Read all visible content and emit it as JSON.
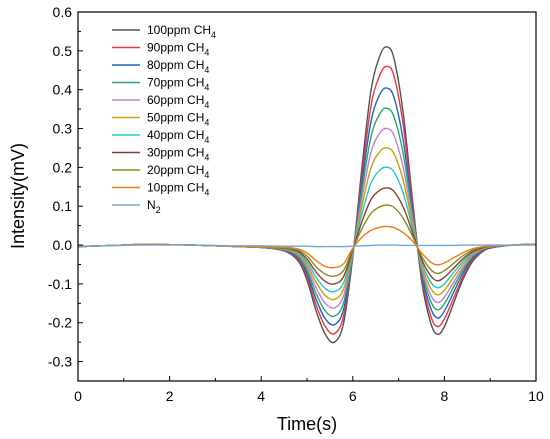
{
  "chart_data": {
    "type": "line",
    "title": "",
    "xlabel": "Time(s)",
    "ylabel": "Intensity(mV)",
    "xlim": [
      0,
      10
    ],
    "ylim": [
      -0.35,
      0.6
    ],
    "xticks": [
      "0",
      "2",
      "4",
      "6",
      "8",
      "10"
    ],
    "yticks": [
      "-0.3",
      "-0.2",
      "-0.1",
      "0.0",
      "0.1",
      "0.2",
      "0.3",
      "0.4",
      "0.5",
      "0.6"
    ],
    "grid": false,
    "legend_position": "top-left",
    "x": [
      0,
      0.5,
      1,
      1.5,
      2,
      2.5,
      3,
      3.5,
      4,
      4.5,
      4.8,
      5.0,
      5.2,
      5.4,
      5.6,
      5.8,
      6.0,
      6.2,
      6.4,
      6.6,
      6.75,
      6.9,
      7.1,
      7.3,
      7.5,
      7.7,
      7.85,
      8.0,
      8.2,
      8.4,
      8.6,
      8.8,
      9.0,
      9.5,
      10
    ],
    "series": [
      {
        "name": "100ppm CH",
        "sub": "4",
        "color": "#505050",
        "values": [
          -0.004,
          -0.002,
          0.0,
          0.002,
          0.001,
          0.0,
          -0.002,
          -0.004,
          -0.006,
          -0.015,
          -0.04,
          -0.09,
          -0.17,
          -0.23,
          -0.25,
          -0.2,
          -0.03,
          0.2,
          0.4,
          0.49,
          0.51,
          0.48,
          0.34,
          0.12,
          -0.09,
          -0.2,
          -0.23,
          -0.21,
          -0.15,
          -0.09,
          -0.045,
          -0.02,
          -0.008,
          0.0,
          0.002
        ]
      },
      {
        "name": "90ppm CH",
        "sub": "4",
        "color": "#e8383d",
        "values": [
          -0.004,
          -0.002,
          0.0,
          0.002,
          0.001,
          0.0,
          -0.002,
          -0.004,
          -0.006,
          -0.014,
          -0.036,
          -0.08,
          -0.155,
          -0.21,
          -0.228,
          -0.182,
          -0.027,
          0.18,
          0.36,
          0.44,
          0.46,
          0.435,
          0.31,
          0.11,
          -0.08,
          -0.182,
          -0.21,
          -0.19,
          -0.137,
          -0.082,
          -0.04,
          -0.018,
          -0.007,
          0.0,
          0.002
        ]
      },
      {
        "name": "80ppm CH",
        "sub": "4",
        "color": "#1f63c4",
        "values": [
          -0.004,
          -0.002,
          0.0,
          0.002,
          0.001,
          0.0,
          -0.002,
          -0.004,
          -0.006,
          -0.013,
          -0.032,
          -0.072,
          -0.14,
          -0.19,
          -0.205,
          -0.165,
          -0.025,
          0.16,
          0.32,
          0.39,
          0.404,
          0.38,
          0.27,
          0.095,
          -0.072,
          -0.162,
          -0.188,
          -0.17,
          -0.122,
          -0.073,
          -0.036,
          -0.016,
          -0.006,
          0.0,
          0.002
        ]
      },
      {
        "name": "70ppm CH",
        "sub": "4",
        "color": "#2aa86b",
        "values": [
          -0.004,
          -0.002,
          0.0,
          0.002,
          0.001,
          0.0,
          -0.002,
          -0.004,
          -0.006,
          -0.012,
          -0.028,
          -0.064,
          -0.125,
          -0.17,
          -0.183,
          -0.148,
          -0.022,
          0.14,
          0.28,
          0.34,
          0.352,
          0.33,
          0.235,
          0.082,
          -0.064,
          -0.144,
          -0.167,
          -0.151,
          -0.108,
          -0.065,
          -0.032,
          -0.014,
          -0.005,
          0.0,
          0.002
        ]
      },
      {
        "name": "60ppm CH",
        "sub": "4",
        "color": "#c07ed6",
        "values": [
          -0.004,
          -0.002,
          0.0,
          0.002,
          0.001,
          0.0,
          -0.002,
          -0.004,
          -0.006,
          -0.011,
          -0.025,
          -0.057,
          -0.11,
          -0.15,
          -0.162,
          -0.13,
          -0.02,
          0.12,
          0.24,
          0.29,
          0.3,
          0.282,
          0.2,
          0.07,
          -0.057,
          -0.128,
          -0.148,
          -0.134,
          -0.096,
          -0.058,
          -0.028,
          -0.012,
          -0.005,
          0.0,
          0.002
        ]
      },
      {
        "name": "50ppm CH",
        "sub": "4",
        "color": "#c9a100",
        "values": [
          -0.004,
          -0.002,
          0.0,
          0.002,
          0.001,
          0.0,
          -0.002,
          -0.004,
          -0.006,
          -0.01,
          -0.022,
          -0.05,
          -0.096,
          -0.13,
          -0.14,
          -0.113,
          -0.018,
          0.1,
          0.2,
          0.242,
          0.25,
          0.235,
          0.167,
          0.058,
          -0.05,
          -0.111,
          -0.128,
          -0.116,
          -0.083,
          -0.05,
          -0.024,
          -0.011,
          -0.004,
          0.0,
          0.002
        ]
      },
      {
        "name": "40ppm CH",
        "sub": "4",
        "color": "#20c8cc",
        "values": [
          -0.004,
          -0.002,
          0.0,
          0.002,
          0.001,
          0.0,
          -0.002,
          -0.004,
          -0.006,
          -0.009,
          -0.019,
          -0.043,
          -0.083,
          -0.112,
          -0.12,
          -0.097,
          -0.015,
          0.08,
          0.16,
          0.194,
          0.2,
          0.188,
          0.134,
          0.046,
          -0.043,
          -0.095,
          -0.11,
          -0.1,
          -0.071,
          -0.043,
          -0.021,
          -0.009,
          -0.004,
          0.0,
          0.002
        ]
      },
      {
        "name": "30ppm CH",
        "sub": "4",
        "color": "#8b3a3a",
        "values": [
          -0.004,
          -0.002,
          0.0,
          0.002,
          0.001,
          0.0,
          -0.002,
          -0.004,
          -0.006,
          -0.008,
          -0.016,
          -0.036,
          -0.07,
          -0.094,
          -0.1,
          -0.081,
          -0.012,
          0.06,
          0.118,
          0.142,
          0.147,
          0.138,
          0.098,
          0.034,
          -0.036,
          -0.079,
          -0.092,
          -0.083,
          -0.06,
          -0.036,
          -0.018,
          -0.008,
          -0.003,
          0.0,
          0.002
        ]
      },
      {
        "name": "20ppm CH",
        "sub": "4",
        "color": "#8a8a18",
        "values": [
          -0.004,
          -0.002,
          0.0,
          0.002,
          0.001,
          0.0,
          -0.002,
          -0.004,
          -0.006,
          -0.007,
          -0.013,
          -0.028,
          -0.056,
          -0.075,
          -0.08,
          -0.065,
          -0.01,
          0.042,
          0.082,
          0.099,
          0.103,
          0.097,
          0.069,
          0.024,
          -0.028,
          -0.063,
          -0.073,
          -0.066,
          -0.047,
          -0.028,
          -0.014,
          -0.006,
          -0.003,
          0.0,
          0.002
        ]
      },
      {
        "name": "10ppm CH",
        "sub": "4",
        "color": "#ef7a1a",
        "values": [
          -0.004,
          -0.002,
          0.0,
          0.002,
          0.001,
          0.0,
          -0.002,
          -0.004,
          -0.005,
          -0.006,
          -0.01,
          -0.02,
          -0.04,
          -0.055,
          -0.058,
          -0.048,
          -0.008,
          0.02,
          0.038,
          0.046,
          0.048,
          0.045,
          0.032,
          0.011,
          -0.02,
          -0.044,
          -0.051,
          -0.046,
          -0.033,
          -0.02,
          -0.01,
          -0.005,
          -0.002,
          0.0,
          0.001
        ]
      },
      {
        "name": "N",
        "sub": "2",
        "color": "#6fa8dc",
        "values": [
          -0.003,
          -0.002,
          -0.001,
          0.0,
          0.0,
          0.0,
          -0.001,
          -0.002,
          -0.002,
          -0.003,
          -0.003,
          -0.003,
          -0.004,
          -0.004,
          -0.004,
          -0.004,
          -0.003,
          -0.002,
          -0.001,
          0.0,
          0.0,
          0.0,
          -0.001,
          -0.001,
          -0.001,
          -0.001,
          -0.001,
          -0.001,
          -0.001,
          0.0,
          0.0,
          0.0,
          0.0,
          0.0,
          0.0
        ]
      }
    ]
  }
}
